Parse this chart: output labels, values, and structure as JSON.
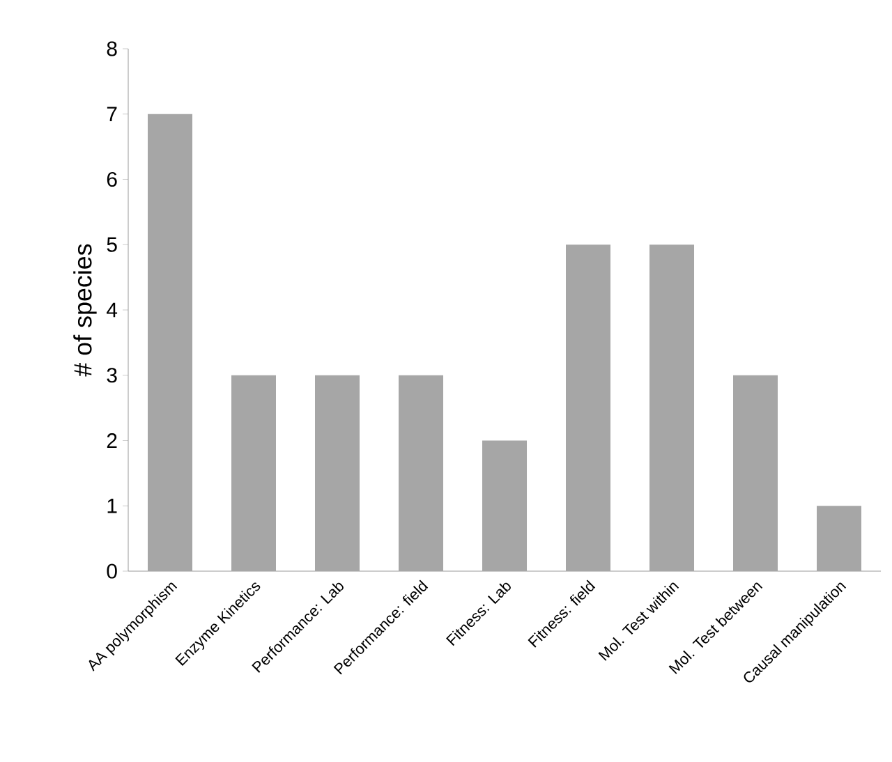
{
  "chart_data": {
    "type": "bar",
    "ylabel": "# of species",
    "categories": [
      "AA polymorphism",
      "Enzyme Kinetics",
      "Performance: Lab",
      "Performance: field",
      "Fitness: Lab",
      "Fitness: field",
      "Mol. Test within",
      "Mol. Test between",
      "Causal manipulation"
    ],
    "values": [
      7,
      3,
      3,
      3,
      2,
      5,
      5,
      3,
      1
    ],
    "color": "#a6a6a6",
    "ylim": [
      0,
      8
    ],
    "yticks": [
      0,
      1,
      2,
      3,
      4,
      5,
      6,
      7,
      8
    ],
    "grid": false
  }
}
